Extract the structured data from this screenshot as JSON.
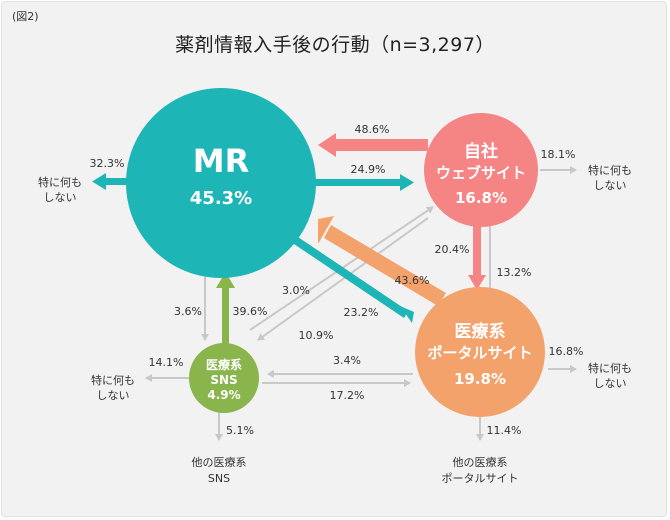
{
  "figure_label": "(図2)",
  "title": "薬剤情報入手後の行動（n=3,297）",
  "colors": {
    "mr": "#1db5b5",
    "company_site": "#f58484",
    "portal": "#f4a26c",
    "sns": "#8ab54d",
    "gray": "#cccccc"
  },
  "nodes": {
    "mr": {
      "name": "MR",
      "value": "45.3%"
    },
    "company_site": {
      "name_line1": "自社",
      "name_line2": "ウェブサイト",
      "value": "16.8%"
    },
    "portal": {
      "name_line1": "医療系",
      "name_line2": "ポータルサイト",
      "value": "19.8%"
    },
    "sns": {
      "name_line1": "医療系",
      "name_line2": "SNS",
      "value": "4.9%"
    }
  },
  "outcomes": {
    "mr_no_action": {
      "line1": "特に何も",
      "line2": "しない"
    },
    "site_no_action": {
      "line1": "特に何も",
      "line2": "しない"
    },
    "portal_no_action": {
      "line1": "特に何も",
      "line2": "しない"
    },
    "sns_no_action": {
      "line1": "特に何も",
      "line2": "しない"
    },
    "other_sns": {
      "line1": "他の医療系",
      "line2": "SNS"
    },
    "other_portal": {
      "line1": "他の医療系",
      "line2": "ポータルサイト"
    }
  },
  "flows": {
    "site_to_mr": "48.6%",
    "mr_to_site": "24.9%",
    "mr_no_action": "32.3%",
    "site_no_action": "18.1%",
    "site_to_portal": "20.4%",
    "portal_to_site": "13.2%",
    "portal_to_mr": "43.6%",
    "mr_to_portal": "23.2%",
    "mr_to_sns": "3.6%",
    "sns_to_mr": "39.6%",
    "sns_to_site": "3.0%",
    "site_to_sns": "10.9%",
    "portal_to_sns": "3.4%",
    "sns_to_portal": "17.2%",
    "sns_no_action": "14.1%",
    "sns_other": "5.1%",
    "portal_no_action": "16.8%",
    "portal_other": "11.4%"
  }
}
